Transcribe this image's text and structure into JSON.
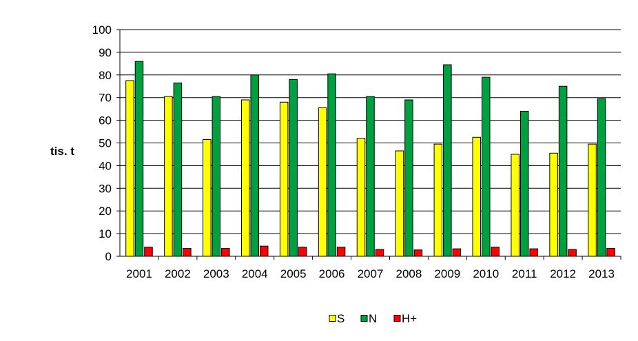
{
  "chart_data": {
    "type": "bar",
    "title": "",
    "ylabel": "tis. t",
    "xlabel": "",
    "ylim": [
      0,
      100
    ],
    "yticks": [
      0,
      10,
      20,
      30,
      40,
      50,
      60,
      70,
      80,
      90,
      100
    ],
    "grid": true,
    "legend": "bottom",
    "categories": [
      "2001",
      "2002",
      "2003",
      "2004",
      "2005",
      "2006",
      "2007",
      "2008",
      "2009",
      "2010",
      "2011",
      "2012",
      "2013"
    ],
    "series": [
      {
        "name": "S",
        "color": "#FFFF00",
        "values": [
          77.5,
          70.5,
          51.5,
          69.0,
          68.0,
          65.5,
          52.0,
          46.5,
          49.5,
          52.5,
          45.0,
          45.5,
          49.5
        ]
      },
      {
        "name": "N",
        "color": "#00A040",
        "values": [
          86.0,
          76.5,
          70.5,
          80.0,
          78.0,
          80.5,
          70.5,
          69.0,
          84.5,
          79.0,
          64.0,
          75.0,
          69.5
        ]
      },
      {
        "name": "H+",
        "color": "#FF0000",
        "values": [
          4.0,
          3.5,
          3.5,
          4.5,
          4.0,
          4.0,
          3.0,
          2.8,
          3.3,
          4.0,
          3.3,
          3.0,
          3.5
        ]
      }
    ]
  }
}
